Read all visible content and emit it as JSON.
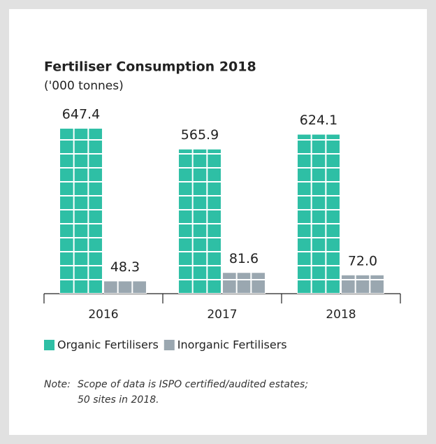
{
  "chart_data": {
    "type": "bar",
    "title": "Fertiliser Consumption 2018",
    "subtitle": "('000 tonnes)",
    "categories": [
      "2016",
      "2017",
      "2018"
    ],
    "series": [
      {
        "name": "Organic Fertilisers",
        "color": "#2ebfa5",
        "values": [
          647.4,
          565.9,
          624.1
        ]
      },
      {
        "name": "Inorganic Fertilisers",
        "color": "#9aa7b0",
        "values": [
          48.3,
          81.6,
          72.0
        ],
        "value_labels": [
          "48.3",
          "81.6",
          "72.0"
        ]
      }
    ],
    "note": {
      "label": "Note:",
      "lines": [
        "Scope of data is ISPO certified/audited estates;",
        "50 sites in 2018."
      ]
    }
  }
}
